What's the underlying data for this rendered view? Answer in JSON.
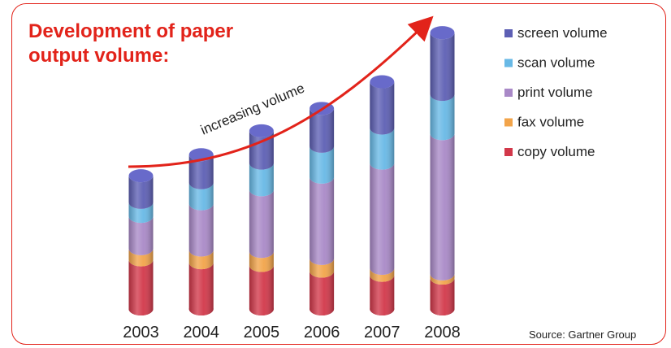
{
  "colors": {
    "frame": "#e2231a",
    "title": "#e2231a",
    "arrow": "#e2231a"
  },
  "title_lines": [
    "Development of paper",
    "output volume:"
  ],
  "arrow_label": "increasing volume",
  "source": "Source: Gartner Group",
  "chart_data": {
    "type": "bar",
    "stacked": true,
    "three_d": "cylinder",
    "title": "Development of paper output volume:",
    "categories": [
      "2003",
      "2004",
      "2005",
      "2006",
      "2007",
      "2008"
    ],
    "series": [
      {
        "name": "copy volume",
        "color": "#d2384a",
        "values": [
          35,
          33,
          31,
          27,
          24,
          22
        ]
      },
      {
        "name": "fax volume",
        "color": "#f2a44a",
        "values": [
          8,
          9,
          10,
          9,
          5,
          3
        ]
      },
      {
        "name": "print volume",
        "color": "#a989c7",
        "values": [
          23,
          33,
          44,
          58,
          75,
          100
        ]
      },
      {
        "name": "scan volume",
        "color": "#68b9e6",
        "values": [
          10,
          15,
          19,
          22,
          25,
          28
        ]
      },
      {
        "name": "screen volume",
        "color": "#5d5fb4",
        "values": [
          19,
          20,
          23,
          27,
          33,
          44
        ]
      }
    ],
    "legend_order": [
      "screen volume",
      "scan volume",
      "print volume",
      "fax volume",
      "copy volume"
    ],
    "legend_position": "right",
    "ylim": [
      0,
      200
    ],
    "grid": false
  }
}
